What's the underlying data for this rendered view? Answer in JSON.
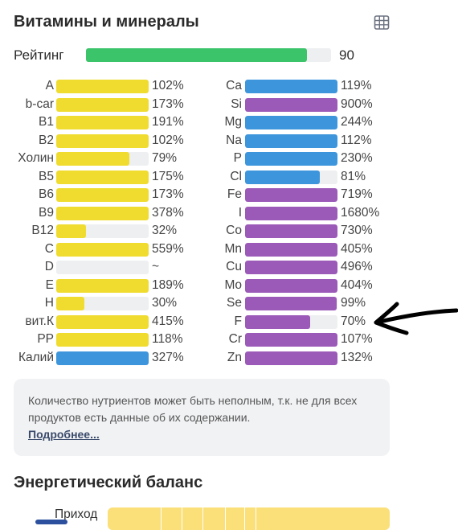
{
  "colors": {
    "rating": "#3cc46b",
    "vitamin": "#f0dc2e",
    "mineral_blue": "#3d95dc",
    "mineral_purple": "#9b59b8",
    "energy": "#fbe07a"
  },
  "title": "Витамины и минералы",
  "table_icon": "table-grid-icon",
  "rating": {
    "label": "Рейтинг",
    "value": "90",
    "fraction": 0.9
  },
  "vitamins": [
    {
      "name": "A",
      "pct": "102%",
      "fill": 1.0,
      "color": "yellow"
    },
    {
      "name": "b-car",
      "pct": "173%",
      "fill": 1.0,
      "color": "yellow"
    },
    {
      "name": "B1",
      "pct": "191%",
      "fill": 1.0,
      "color": "yellow"
    },
    {
      "name": "B2",
      "pct": "102%",
      "fill": 1.0,
      "color": "yellow"
    },
    {
      "name": "Холин",
      "pct": "79%",
      "fill": 0.79,
      "color": "yellow"
    },
    {
      "name": "B5",
      "pct": "175%",
      "fill": 1.0,
      "color": "yellow"
    },
    {
      "name": "B6",
      "pct": "173%",
      "fill": 1.0,
      "color": "yellow"
    },
    {
      "name": "B9",
      "pct": "378%",
      "fill": 1.0,
      "color": "yellow"
    },
    {
      "name": "B12",
      "pct": "32%",
      "fill": 0.32,
      "color": "yellow"
    },
    {
      "name": "C",
      "pct": "559%",
      "fill": 1.0,
      "color": "yellow"
    },
    {
      "name": "D",
      "pct": "~",
      "fill": 0,
      "color": "yellow"
    },
    {
      "name": "E",
      "pct": "189%",
      "fill": 1.0,
      "color": "yellow"
    },
    {
      "name": "H",
      "pct": "30%",
      "fill": 0.3,
      "color": "yellow"
    },
    {
      "name": "вит.К",
      "pct": "415%",
      "fill": 1.0,
      "color": "yellow"
    },
    {
      "name": "PP",
      "pct": "118%",
      "fill": 1.0,
      "color": "yellow"
    },
    {
      "name": "Калий",
      "pct": "327%",
      "fill": 1.0,
      "color": "blue"
    }
  ],
  "minerals": [
    {
      "name": "Ca",
      "pct": "119%",
      "fill": 1.0,
      "color": "blue"
    },
    {
      "name": "Si",
      "pct": "900%",
      "fill": 1.0,
      "color": "purple"
    },
    {
      "name": "Mg",
      "pct": "244%",
      "fill": 1.0,
      "color": "blue"
    },
    {
      "name": "Na",
      "pct": "112%",
      "fill": 1.0,
      "color": "blue"
    },
    {
      "name": "P",
      "pct": "230%",
      "fill": 1.0,
      "color": "blue"
    },
    {
      "name": "Cl",
      "pct": "81%",
      "fill": 0.81,
      "color": "blue"
    },
    {
      "name": "Fe",
      "pct": "719%",
      "fill": 1.0,
      "color": "purple"
    },
    {
      "name": "I",
      "pct": "1680%",
      "fill": 1.0,
      "color": "purple"
    },
    {
      "name": "Co",
      "pct": "730%",
      "fill": 1.0,
      "color": "purple"
    },
    {
      "name": "Mn",
      "pct": "405%",
      "fill": 1.0,
      "color": "purple"
    },
    {
      "name": "Cu",
      "pct": "496%",
      "fill": 1.0,
      "color": "purple"
    },
    {
      "name": "Mo",
      "pct": "404%",
      "fill": 1.0,
      "color": "purple"
    },
    {
      "name": "Se",
      "pct": "99%",
      "fill": 0.99,
      "color": "purple"
    },
    {
      "name": "F",
      "pct": "70%",
      "fill": 0.7,
      "color": "purple"
    },
    {
      "name": "Cr",
      "pct": "107%",
      "fill": 1.0,
      "color": "purple"
    },
    {
      "name": "Zn",
      "pct": "132%",
      "fill": 1.0,
      "color": "purple"
    }
  ],
  "note": {
    "text": "Количество нутриентов может быть неполным, т.к. не для всех продуктов есть данные об их содержании.",
    "link": "Подробнее..."
  },
  "energy": {
    "title": "Энергетический баланс",
    "income_label": "Приход"
  },
  "annotation": {
    "icon": "hand-drawn-arrow-icon"
  }
}
